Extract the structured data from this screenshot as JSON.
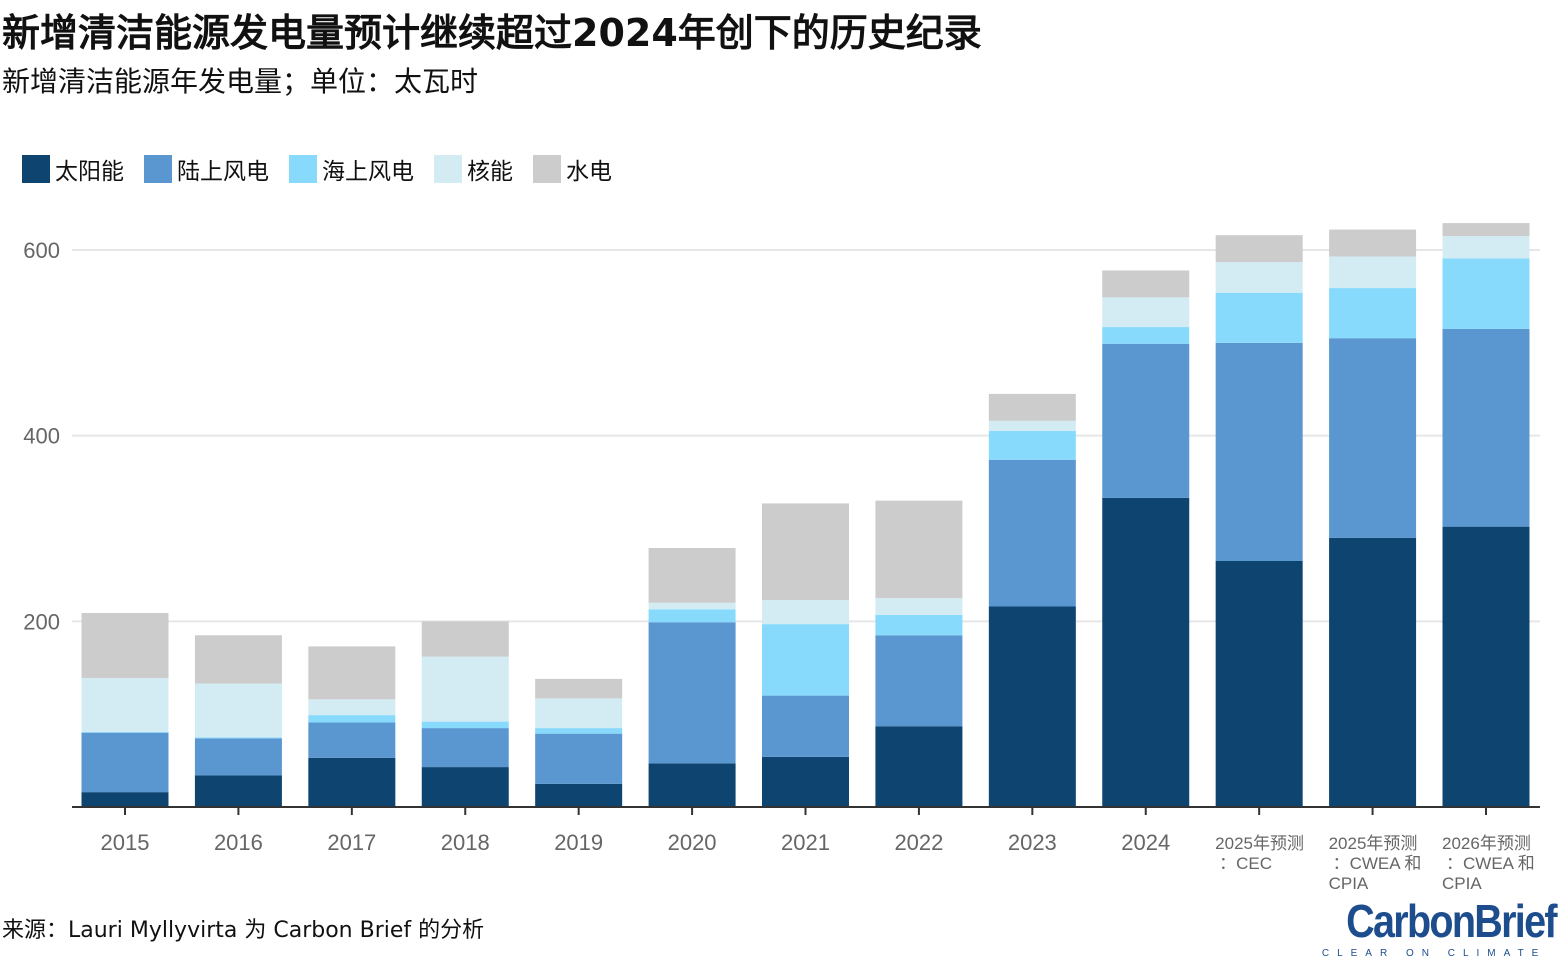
{
  "title": "新增清洁能源发电量预计继续超过2024年创下的历史纪录",
  "subtitle": "新增清洁能源年发电量；单位：太瓦时",
  "source": "来源：Lauri Myllyvirta 为 Carbon Brief 的分析",
  "logo": {
    "main": "CarbonBrief",
    "tagline": "CLEAR ON CLIMATE"
  },
  "colors": {
    "solar": "#0e4470",
    "onshore_wind": "#5a97d1",
    "offshore_wind": "#88dafc",
    "nuclear": "#d3ecf4",
    "hydro": "#cccccc",
    "grid": "#e6e6e6",
    "axis": "#333333",
    "tick_text": "#666666"
  },
  "chart_data": {
    "type": "bar",
    "stacked": true,
    "ylim": [
      0,
      600
    ],
    "yticks": [
      200,
      400,
      600
    ],
    "grid": true,
    "legend_position": "top-left",
    "categories": [
      [
        "2015"
      ],
      [
        "2016"
      ],
      [
        "2017"
      ],
      [
        "2018"
      ],
      [
        "2019"
      ],
      [
        "2020"
      ],
      [
        "2021"
      ],
      [
        "2022"
      ],
      [
        "2023"
      ],
      [
        "2024"
      ],
      [
        "2025年预测",
        "：CEC"
      ],
      [
        "2025年预测",
        "：CWEA 和",
        "CPIA"
      ],
      [
        "2026年预测",
        "：CWEA 和",
        "CPIA"
      ]
    ],
    "series": [
      {
        "name": "太阳能",
        "color": "#0e4470",
        "values": [
          16,
          34,
          53,
          43,
          25,
          47,
          54,
          87,
          216,
          333,
          265,
          290,
          302
        ]
      },
      {
        "name": "陆上风电",
        "color": "#5a97d1",
        "values": [
          64,
          40,
          38,
          42,
          54,
          152,
          66,
          98,
          158,
          166,
          235,
          215,
          213
        ]
      },
      {
        "name": "海上风电",
        "color": "#88dafc",
        "values": [
          1,
          1,
          8,
          7,
          6,
          14,
          77,
          22,
          31,
          18,
          54,
          54,
          76
        ]
      },
      {
        "name": "核能",
        "color": "#d3ecf4",
        "values": [
          58,
          58,
          17,
          70,
          32,
          7,
          26,
          18,
          11,
          32,
          33,
          34,
          24
        ]
      },
      {
        "name": "水电",
        "color": "#cccccc",
        "values": [
          70,
          52,
          57,
          38,
          21,
          59,
          104,
          105,
          29,
          29,
          29,
          29,
          14
        ]
      }
    ]
  }
}
